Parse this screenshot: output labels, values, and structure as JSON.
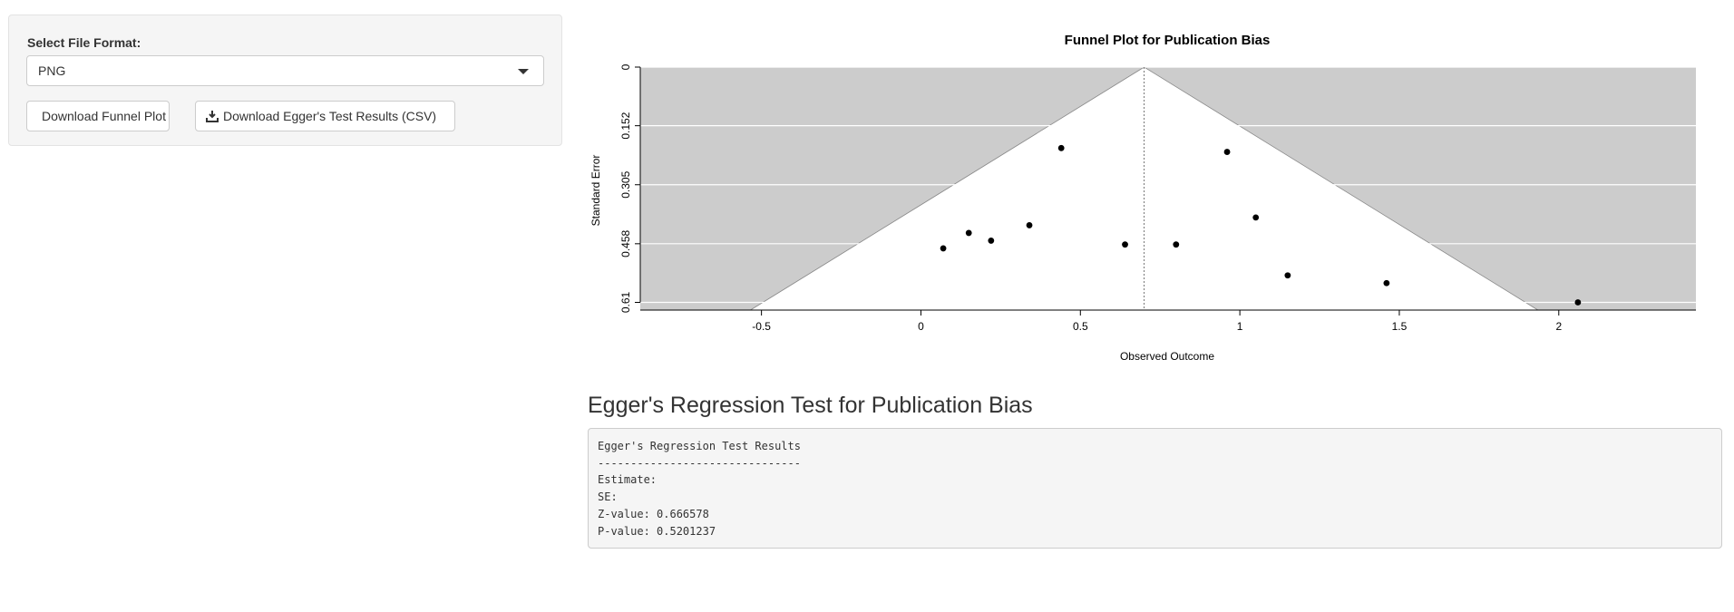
{
  "sidebar": {
    "format_label": "Select File Format:",
    "format_value": "PNG",
    "download_plot_label": "Download Funnel Plot",
    "download_egger_label": "Download Egger's Test Results (CSV)"
  },
  "egger": {
    "heading": "Egger's Regression Test for Publication Bias",
    "lines": [
      "Egger's Regression Test Results",
      "-------------------------------",
      "Estimate:",
      "SE:",
      "Z-value: 0.666578",
      "P-value: 0.5201237"
    ]
  },
  "colors": {
    "plot_background": "#cccccc",
    "funnel_fill": "#ffffff",
    "point": "#000000"
  },
  "chart_data": {
    "type": "scatter",
    "title": "Funnel Plot for Publication Bias",
    "xlabel": "Observed Outcome",
    "ylabel": "Standard Error",
    "xlim": [
      -0.88,
      2.43
    ],
    "ylim": [
      0.63,
      0
    ],
    "x_ticks": [
      "-0.5",
      "0",
      "0.5",
      "1",
      "1.5",
      "2"
    ],
    "x_tick_values": [
      -0.5,
      0,
      0.5,
      1,
      1.5,
      2
    ],
    "y_ticks": [
      "0",
      "0.152",
      "0.305",
      "0.458",
      "0.61"
    ],
    "y_tick_values": [
      0,
      0.152,
      0.305,
      0.458,
      0.61
    ],
    "funnel_center": 0.7,
    "grid": true,
    "points": [
      {
        "x": 0.44,
        "y": 0.21
      },
      {
        "x": 0.96,
        "y": 0.22
      },
      {
        "x": 1.05,
        "y": 0.39
      },
      {
        "x": 0.34,
        "y": 0.41
      },
      {
        "x": 0.15,
        "y": 0.43
      },
      {
        "x": 0.22,
        "y": 0.45
      },
      {
        "x": 0.64,
        "y": 0.46
      },
      {
        "x": 0.8,
        "y": 0.46
      },
      {
        "x": 0.07,
        "y": 0.47
      },
      {
        "x": 1.15,
        "y": 0.54
      },
      {
        "x": 1.46,
        "y": 0.56
      },
      {
        "x": 2.06,
        "y": 0.61
      }
    ]
  }
}
